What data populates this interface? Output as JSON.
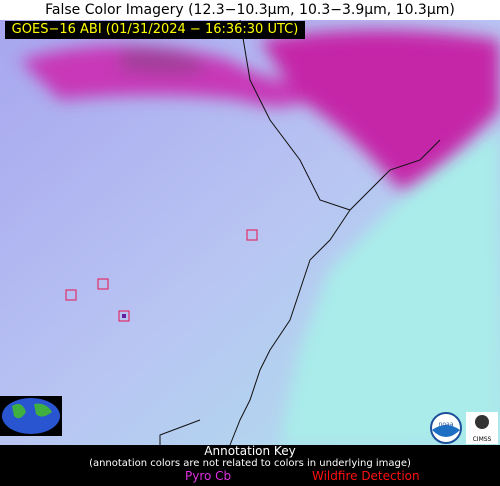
{
  "header": {
    "title": "False Color Imagery (12.3−10.3µm, 10.3−3.9µm, 10.3µm)",
    "subtitle": "GOES−16 ABI (01/31/2024 − 16:36:30 UTC)"
  },
  "legend": {
    "title": "Annotation Key",
    "note": "(annotation colors are not related to colors in underlying image)",
    "items": [
      "Pyro Cb",
      "Wildfire Detection"
    ]
  },
  "logos": [
    "noaa",
    "CIMSS"
  ]
}
